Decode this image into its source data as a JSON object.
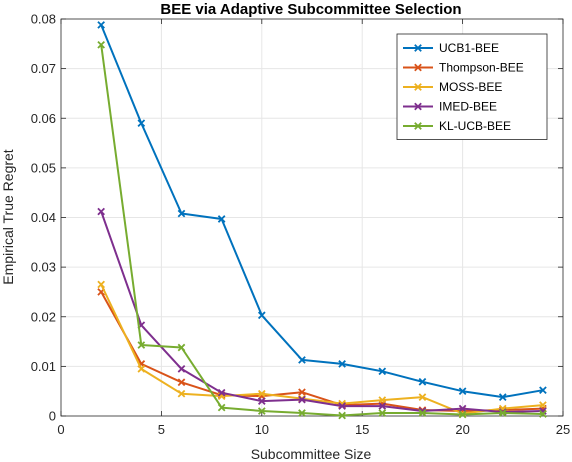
{
  "chart_data": {
    "type": "line",
    "title": "BEE via Adaptive Subcommittee Selection",
    "xlabel": "Subcommittee Size",
    "ylabel": "Empirical True Regret",
    "xlim": [
      0,
      25
    ],
    "ylim": [
      0,
      0.08
    ],
    "xticks": [
      0,
      5,
      10,
      15,
      20,
      25
    ],
    "xtick_labels": [
      "0",
      "5",
      "10",
      "15",
      "20",
      "25"
    ],
    "yticks": [
      0,
      0.01,
      0.02,
      0.03,
      0.04,
      0.05,
      0.06,
      0.07,
      0.08
    ],
    "ytick_labels": [
      "0",
      "0.01",
      "0.02",
      "0.03",
      "0.04",
      "0.05",
      "0.06",
      "0.07",
      "0.08"
    ],
    "grid": true,
    "legend_position": "top-right",
    "marker": "x",
    "x": [
      2,
      4,
      6,
      8,
      10,
      12,
      14,
      16,
      18,
      20,
      22,
      24
    ],
    "series": [
      {
        "name": "UCB1-BEE",
        "color": "#0072BD",
        "values": [
          0.0788,
          0.059,
          0.0408,
          0.0397,
          0.0203,
          0.0113,
          0.0105,
          0.009,
          0.0069,
          0.005,
          0.0038,
          0.0052
        ]
      },
      {
        "name": "Thompson-BEE",
        "color": "#D95319",
        "values": [
          0.025,
          0.0105,
          0.0068,
          0.0042,
          0.004,
          0.0048,
          0.0022,
          0.0025,
          0.0012,
          0.001,
          0.0012,
          0.0015
        ]
      },
      {
        "name": "MOSS-BEE",
        "color": "#EDB120",
        "values": [
          0.0265,
          0.0095,
          0.0045,
          0.004,
          0.0045,
          0.0035,
          0.0025,
          0.0032,
          0.0038,
          0.0005,
          0.0015,
          0.0022
        ]
      },
      {
        "name": "IMED-BEE",
        "color": "#7E2F8E",
        "values": [
          0.0412,
          0.0183,
          0.0095,
          0.0047,
          0.003,
          0.0033,
          0.002,
          0.002,
          0.001,
          0.0015,
          0.0008,
          0.001
        ]
      },
      {
        "name": "KL-UCB-BEE",
        "color": "#77AC30",
        "values": [
          0.0748,
          0.0143,
          0.0138,
          0.0017,
          0.001,
          0.0006,
          0.0001,
          0.0006,
          0.0006,
          0.0003,
          0.0006,
          0.0004
        ]
      }
    ]
  }
}
